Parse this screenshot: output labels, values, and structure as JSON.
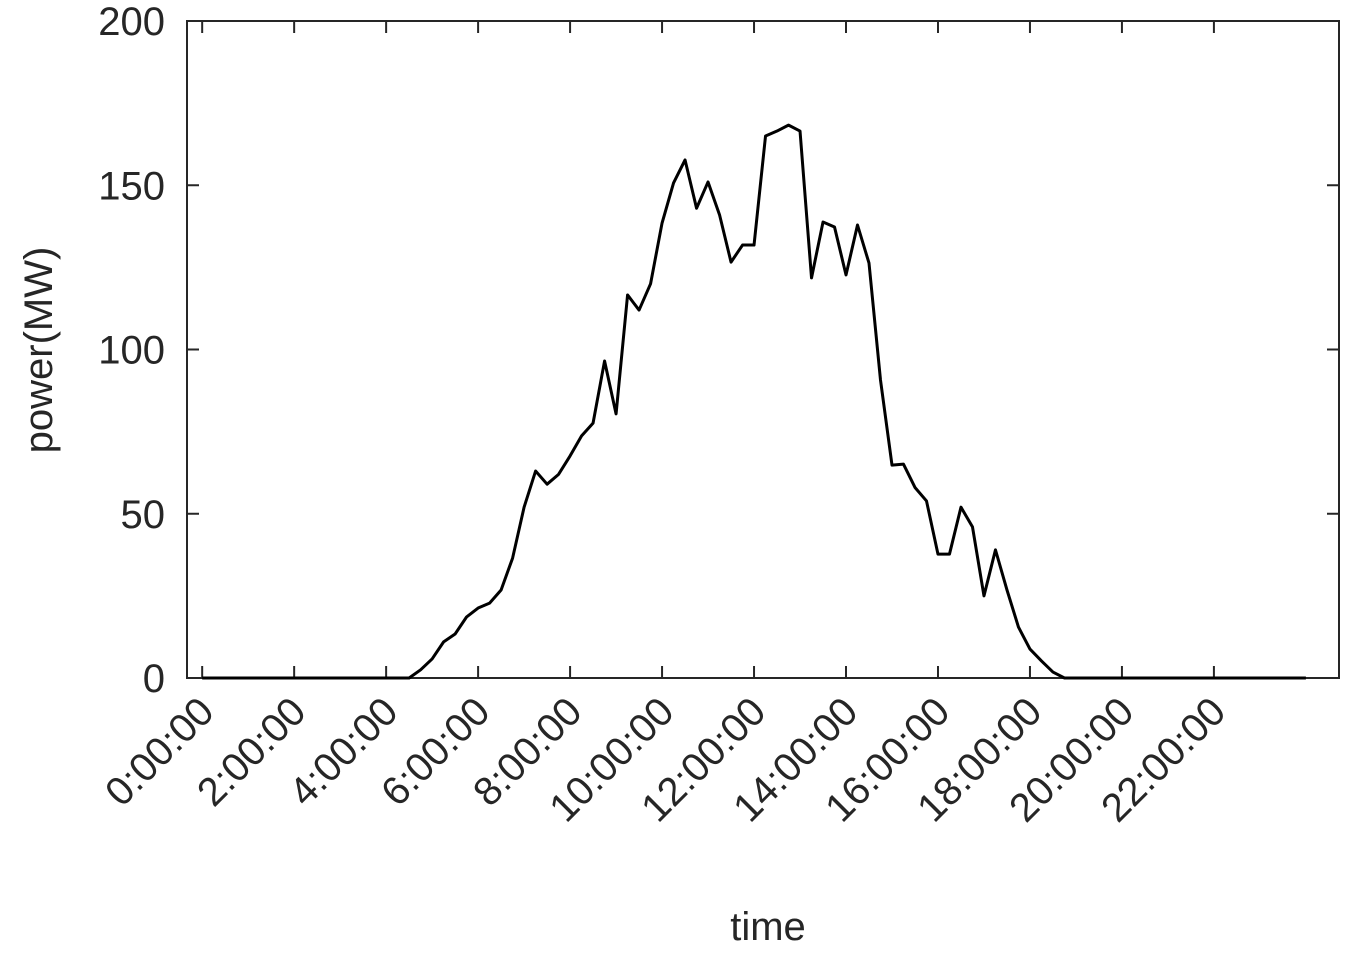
{
  "chart_data": {
    "type": "line",
    "xlabel": "time",
    "ylabel": "power(MW)",
    "x": [
      0,
      0.25,
      0.5,
      0.75,
      1,
      1.25,
      1.5,
      1.75,
      2,
      2.25,
      2.5,
      2.75,
      3,
      3.25,
      3.5,
      3.75,
      4,
      4.25,
      4.5,
      4.75,
      5,
      5.25,
      5.5,
      5.75,
      6,
      6.25,
      6.5,
      6.75,
      7,
      7.25,
      7.5,
      7.75,
      8,
      8.25,
      8.5,
      8.75,
      9,
      9.25,
      9.5,
      9.75,
      10,
      10.25,
      10.5,
      10.75,
      11,
      11.25,
      11.5,
      11.75,
      12,
      12.25,
      12.5,
      12.75,
      13,
      13.25,
      13.5,
      13.75,
      14,
      14.25,
      14.5,
      14.75,
      15,
      15.25,
      15.5,
      15.75,
      16,
      16.25,
      16.5,
      16.75,
      17,
      17.25,
      17.5,
      17.75,
      18,
      18.25,
      18.5,
      18.75,
      19,
      19.25,
      19.5,
      19.75,
      20,
      20.25,
      20.5,
      20.75,
      21,
      21.25,
      21.5,
      21.75,
      22,
      22.25,
      22.5,
      22.75,
      23,
      23.25,
      23.5,
      23.75,
      24
    ],
    "series": [
      {
        "color": "#000000",
        "values": [
          0,
          0,
          0,
          0,
          0,
          0,
          0,
          0,
          0,
          0,
          0,
          0,
          0,
          0,
          0,
          0,
          0,
          0,
          0,
          2.5,
          5.8,
          11,
          13.4,
          18.6,
          21.3,
          22.8,
          26.8,
          36.5,
          52,
          63,
          59,
          62,
          67.6,
          73.7,
          77.6,
          96.5,
          80.4,
          116.6,
          112,
          120,
          138.5,
          150.7,
          157.7,
          143,
          151,
          141,
          126.6,
          131.8,
          131.8,
          165,
          166.5,
          168.3,
          166.5,
          121.8,
          138.8,
          137.3,
          122.7,
          137.9,
          126.3,
          90.7,
          64.8,
          65.1,
          58,
          53.9,
          37.7,
          37.7,
          52,
          46,
          25,
          39,
          26.8,
          15.5,
          8.8,
          5.2,
          1.8,
          0,
          0,
          0,
          0,
          0,
          0,
          0,
          0,
          0,
          0,
          0,
          0,
          0,
          0,
          0,
          0,
          0,
          0,
          0,
          0,
          0,
          0
        ]
      }
    ],
    "xlim": [
      -0.33,
      24.72
    ],
    "xticks": [
      {
        "value": 0,
        "label": "0:00:00"
      },
      {
        "value": 2,
        "label": "2:00:00"
      },
      {
        "value": 4,
        "label": "4:00:00"
      },
      {
        "value": 6,
        "label": "6:00:00"
      },
      {
        "value": 8,
        "label": "8:00:00"
      },
      {
        "value": 10,
        "label": "10:00:00"
      },
      {
        "value": 12,
        "label": "12:00:00"
      },
      {
        "value": 14,
        "label": "14:00:00"
      },
      {
        "value": 16,
        "label": "16:00:00"
      },
      {
        "value": 18,
        "label": "18:00:00"
      },
      {
        "value": 20,
        "label": "20:00:00"
      },
      {
        "value": 22,
        "label": "22:00:00"
      }
    ],
    "ylim": [
      0,
      200
    ],
    "yticks": [
      0,
      50,
      100,
      150,
      200
    ],
    "grid": false
  }
}
